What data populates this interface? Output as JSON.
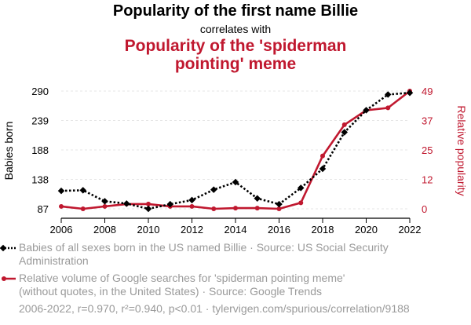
{
  "header": {
    "title": "Popularity of the first name Billie",
    "connector": "correlates with",
    "title2_line1": "Popularity of the 'spiderman",
    "title2_line2": "pointing' meme"
  },
  "colors": {
    "series1": "#000000",
    "series2": "#c0182f",
    "muted": "#9a9a9a",
    "grid": "#e6e6e6"
  },
  "chart_data": {
    "type": "line",
    "x": [
      2006,
      2007,
      2008,
      2009,
      2010,
      2011,
      2012,
      2013,
      2014,
      2015,
      2016,
      2017,
      2018,
      2019,
      2020,
      2021,
      2022
    ],
    "xticks": [
      "2006",
      "2008",
      "2010",
      "2012",
      "2014",
      "2016",
      "2018",
      "2020",
      "2022"
    ],
    "xlim": [
      2006,
      2022
    ],
    "left_axis": {
      "label": "Babies born",
      "ticks": [
        "290",
        "239",
        "188",
        "138",
        "87"
      ],
      "ylim": [
        87,
        290
      ]
    },
    "right_axis": {
      "label": "Relative popularity",
      "ticks": [
        "49",
        "37",
        "25",
        "12",
        "0"
      ],
      "ylim": [
        0,
        49
      ]
    },
    "grid": true,
    "series": [
      {
        "name": "Babies of all sexes born in the US named Billie",
        "axis": "left",
        "style": "dotted-diamond",
        "values": [
          118,
          119,
          100,
          96,
          87,
          95,
          102,
          120,
          133,
          105,
          95,
          123,
          156,
          219,
          257,
          284,
          287
        ]
      },
      {
        "name": "Relative volume of Google searches for 'spiderman pointing meme'",
        "axis": "right",
        "style": "solid",
        "values": [
          1,
          0,
          1,
          2,
          2,
          1,
          1,
          0,
          0.3,
          0.3,
          0,
          2.5,
          22,
          35,
          41,
          42,
          49
        ]
      }
    ]
  },
  "legend": {
    "item1_line1": "Babies of all sexes born in the US named Billie · Source: US Social Security",
    "item1_line2": "Administration",
    "item2_line1": "Relative volume of Google searches for 'spiderman pointing meme'",
    "item2_line2": "(without quotes, in the United States) · Source: Google Trends"
  },
  "footer": "2006-2022, r=0.970, r²=0.940, p<0.01 · tylervigen.com/spurious/correlation/9188"
}
